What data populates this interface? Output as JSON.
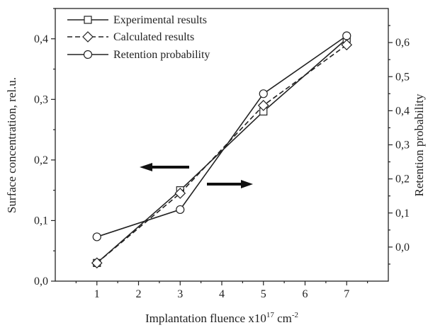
{
  "chart_data": {
    "type": "line",
    "x": [
      1,
      3,
      5,
      7
    ],
    "xlim": [
      0,
      8
    ],
    "xticks": [
      "1",
      "2",
      "3",
      "4",
      "5",
      "6",
      "7"
    ],
    "xlabel_main": "Implantation fluence x10",
    "xlabel_sup": "17",
    "xlabel_unit": " cm",
    "xlabel_unit_sup": "-2",
    "ylabel_left": "Surface concentration, rel.u.",
    "ylabel_right": "Retention probability",
    "ylim_left": [
      0.0,
      0.45
    ],
    "ylim_right": [
      -0.1,
      0.7
    ],
    "yticks_left": [
      "0,0",
      "0,1",
      "0,2",
      "0,3",
      "0,4"
    ],
    "yticks_right": [
      "0,0",
      "0,1",
      "0,2",
      "0,3",
      "0,4",
      "0,5",
      "0,6"
    ],
    "legend_position": "top-left",
    "series": [
      {
        "name": "Experimental results",
        "axis": "left",
        "marker": "square",
        "dash": "solid",
        "values": [
          0.03,
          0.15,
          0.28,
          0.4
        ]
      },
      {
        "name": "Calculated results",
        "axis": "left",
        "marker": "diamond",
        "dash": "dashed",
        "values": [
          0.03,
          0.145,
          0.29,
          0.39
        ]
      },
      {
        "name": "Retention probability",
        "axis": "right",
        "marker": "circle",
        "dash": "solid",
        "values": [
          0.03,
          0.11,
          0.45,
          0.62
        ]
      }
    ],
    "annotations": [
      {
        "type": "arrow",
        "direction": "left",
        "meaning": "left axis"
      },
      {
        "type": "arrow",
        "direction": "right",
        "meaning": "right axis"
      }
    ]
  }
}
